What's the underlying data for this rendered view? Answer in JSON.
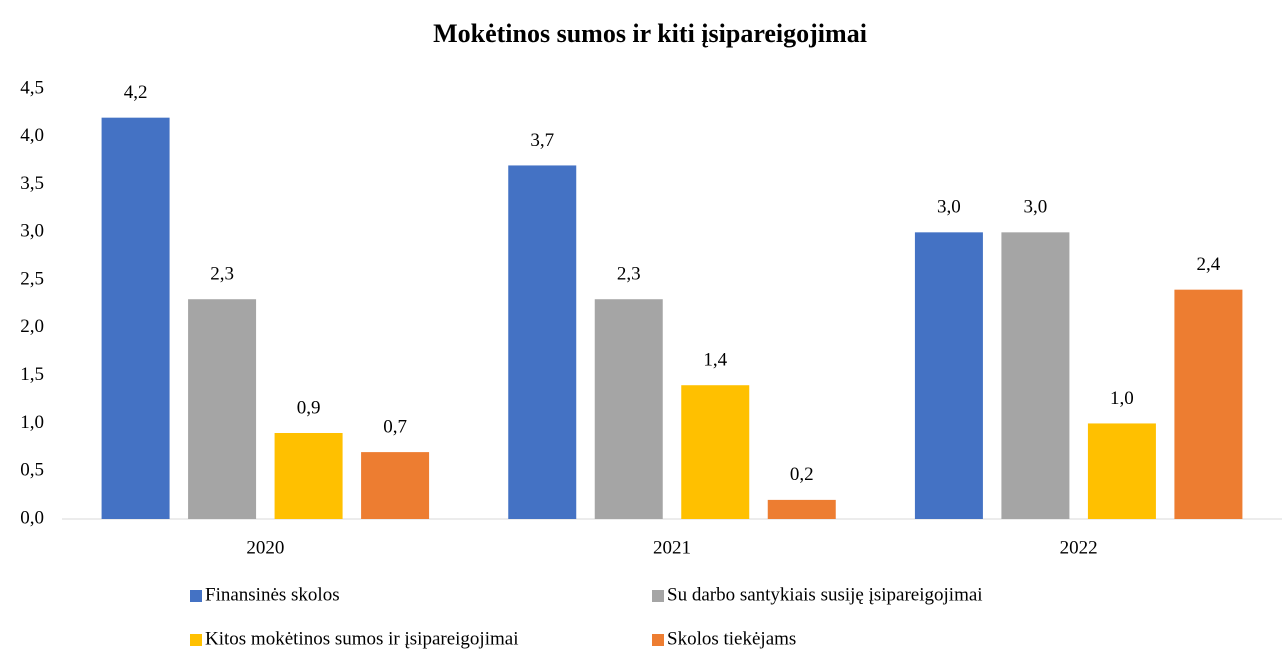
{
  "chart_data": {
    "type": "bar",
    "title": "Mokėtinos sumos ir kiti įsipareigojimai",
    "categories": [
      "2020",
      "2021",
      "2022"
    ],
    "series": [
      {
        "name": "Finansinės skolos",
        "color": "#4472c4",
        "values": [
          4.2,
          3.7,
          3.0
        ],
        "value_labels": [
          "4,2",
          "3,7",
          "3,0"
        ]
      },
      {
        "name": "Su darbo santykiais susiję įsipareigojimai",
        "color": "#a5a5a5",
        "values": [
          2.3,
          2.3,
          3.0
        ],
        "value_labels": [
          "2,3",
          "2,3",
          "3,0"
        ]
      },
      {
        "name": "Kitos mokėtinos sumos ir įsipareigojimai",
        "color": "#ffc000",
        "values": [
          0.9,
          1.4,
          1.0
        ],
        "value_labels": [
          "0,9",
          "1,4",
          "1,0"
        ]
      },
      {
        "name": "Skolos tiekėjams",
        "color": "#ed7d31",
        "values": [
          0.7,
          0.2,
          2.4
        ],
        "value_labels": [
          "0,7",
          "0,2",
          "2,4"
        ]
      }
    ],
    "ylim": [
      0,
      4.5
    ],
    "yticks": [
      {
        "value": 0,
        "label": "0,0"
      },
      {
        "value": 0.5,
        "label": "0,5"
      },
      {
        "value": 1,
        "label": "1,0"
      },
      {
        "value": 1.5,
        "label": "1,5"
      },
      {
        "value": 2,
        "label": "2,0"
      },
      {
        "value": 2.5,
        "label": "2,5"
      },
      {
        "value": 3,
        "label": "3,0"
      },
      {
        "value": 3.5,
        "label": "3,5"
      },
      {
        "value": 4,
        "label": "4,0"
      },
      {
        "value": 4.5,
        "label": "4,5"
      }
    ],
    "grid": false
  }
}
